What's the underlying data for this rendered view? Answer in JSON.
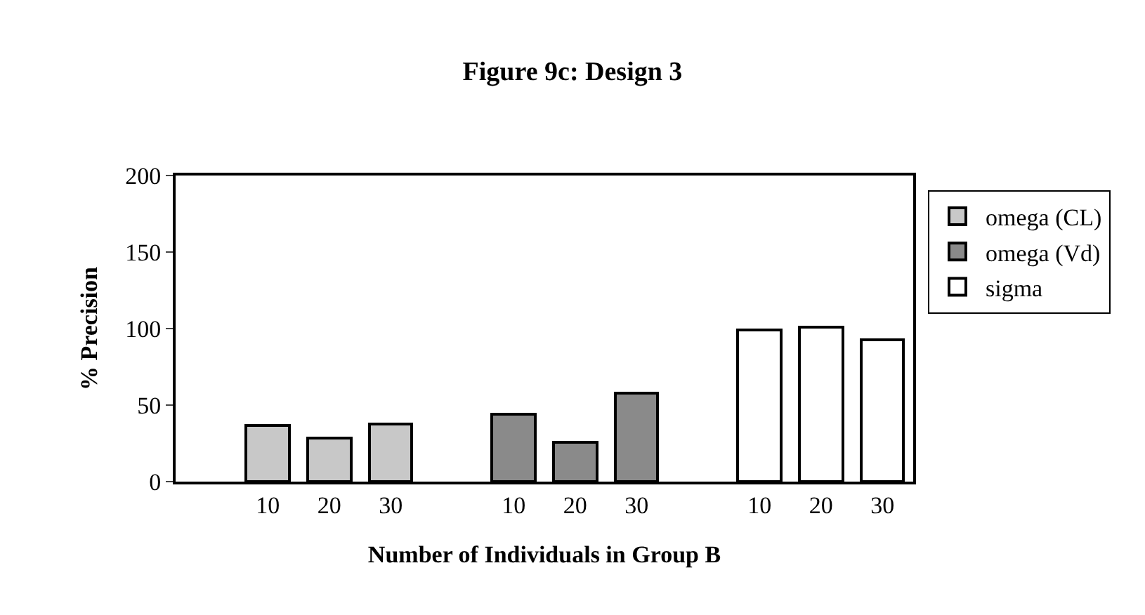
{
  "chart_data": {
    "type": "bar",
    "title": "Figure 9c: Design 3",
    "xlabel": "Number of Individuals in Group B",
    "ylabel": "% Precision",
    "categories": [
      null,
      "10",
      "20",
      "30",
      null,
      "10",
      "20",
      "30",
      null,
      "10",
      "20",
      "30"
    ],
    "series": [
      {
        "name": "omega (CL)",
        "color": "#c8c8c8",
        "values": [
          null,
          37,
          28,
          38,
          null,
          null,
          null,
          null,
          null,
          null,
          null,
          null
        ]
      },
      {
        "name": "omega (Vd)",
        "color": "#8a8a8a",
        "values": [
          null,
          null,
          null,
          null,
          null,
          44,
          26,
          58,
          null,
          null,
          null,
          null
        ]
      },
      {
        "name": "sigma",
        "color": "#ffffff",
        "values": [
          null,
          null,
          null,
          null,
          null,
          null,
          null,
          null,
          null,
          99,
          101,
          93
        ]
      }
    ],
    "ylim": [
      0,
      200
    ],
    "yticks": [
      0,
      50,
      100,
      150,
      200
    ],
    "grid": false,
    "legend": "right"
  }
}
